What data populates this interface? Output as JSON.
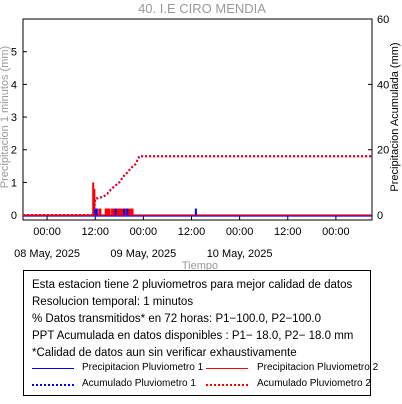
{
  "window": {
    "title": "40. I.E CIRO MENDIA"
  },
  "chart_data": {
    "type": "line",
    "title": "40. I.E CIRO MENDIA",
    "xlabel": "Tiempo",
    "ylabel_left": "Precipitacion 1 minutos (mm)",
    "ylabel_right": "Precipitacion Acumulada (mm)",
    "ylim_left": [
      -0.15,
      6
    ],
    "ylim_right": [
      -1.5,
      60
    ],
    "left_yticks": [
      0,
      1,
      2,
      3,
      4,
      5
    ],
    "right_yticks": [
      0,
      20,
      40,
      60
    ],
    "xlim_hours": [
      -6,
      81
    ],
    "x_ticks": [
      {
        "hour": 0,
        "label": "00:00"
      },
      {
        "hour": 12,
        "label": "12:00"
      },
      {
        "hour": 24,
        "label": "00:00"
      },
      {
        "hour": 36,
        "label": "12:00"
      },
      {
        "hour": 48,
        "label": "00:00"
      },
      {
        "hour": 60,
        "label": "12:00"
      },
      {
        "hour": 72,
        "label": "00:00"
      }
    ],
    "date_labels": [
      {
        "hour": 0,
        "label": "08 May, 2025"
      },
      {
        "hour": 24,
        "label": "09 May, 2025"
      },
      {
        "hour": 48,
        "label": "10 May, 2025"
      }
    ],
    "grid": false,
    "series": [
      {
        "name": "Precipitacion Pluviometro 1",
        "axis": "left",
        "style": "bars",
        "color": "#0000ff",
        "x_hours": [
          11.9,
          12.4,
          17.1,
          19.2,
          20.0,
          37.1
        ],
        "values": [
          0.2,
          0.2,
          0.2,
          0.2,
          0.2,
          0.2
        ]
      },
      {
        "name": "Precipitacion Pluviometro 2",
        "axis": "left",
        "style": "bars",
        "color": "#ff0000",
        "x_hours": [
          11.5,
          11.8,
          12.2,
          13.0,
          13.3,
          14.6,
          14.8,
          15.0,
          15.3,
          15.6,
          16.2,
          16.6,
          17.0,
          17.4,
          17.8,
          18.2,
          18.6,
          19.0,
          19.4,
          19.8,
          20.2,
          20.6,
          21.0,
          21.3
        ],
        "values": [
          1.0,
          0.8,
          0.2,
          0.2,
          0.2,
          0.2,
          0.2,
          0.2,
          0.2,
          0.2,
          0.2,
          0.2,
          0.2,
          0.2,
          0.2,
          0.2,
          0.2,
          0.2,
          0.2,
          0.2,
          0.2,
          0.2,
          0.2,
          0.2
        ]
      },
      {
        "name": "Acumulado Pluviometro 1",
        "axis": "right",
        "style": "dotted",
        "color": "#0000ff",
        "x_hours": [
          -6,
          11.6,
          12.0,
          14.0,
          15.0,
          16.0,
          17.0,
          18.0,
          19.0,
          20.0,
          21.0,
          22.0,
          23.0,
          81
        ],
        "values": [
          0,
          0,
          5.0,
          5.6,
          6.5,
          8.0,
          9.0,
          10.0,
          11.8,
          13.0,
          14.5,
          15.5,
          18.0,
          18.0
        ]
      },
      {
        "name": "Acumulado Pluviometro 2",
        "axis": "right",
        "style": "dotted",
        "color": "#ff0000",
        "x_hours": [
          -6,
          11.6,
          12.0,
          14.0,
          15.0,
          16.0,
          17.0,
          18.0,
          19.0,
          20.0,
          21.0,
          22.0,
          23.0,
          81
        ],
        "values": [
          0,
          0,
          5.0,
          5.6,
          6.5,
          8.0,
          9.0,
          10.0,
          11.8,
          13.0,
          14.5,
          15.5,
          18.0,
          18.0
        ]
      }
    ]
  },
  "info": {
    "line1": "Esta estacion tiene 2 pluviometros para mejor calidad de datos",
    "line2": "Resolucion temporal: 1 minutos",
    "line3": "% Datos transmitidos* en 72 horas: P1−100.0, P2−100.0",
    "line4": "PPT Acumulada en datos disponibles : P1− 18.0, P2− 18.0 mm",
    "line5": "*Calidad de datos aun sin verificar exhaustivamente"
  },
  "legend": {
    "p1_label": "Precipitacion Pluviometro 1",
    "p2_label": "Precipitacion Pluviometro 2",
    "a1_label": "Acumulado Pluviometro 1",
    "a2_label": "Acumulado Pluviometro 2",
    "p1_color": "#0000ff",
    "p2_color": "#ff0000"
  }
}
